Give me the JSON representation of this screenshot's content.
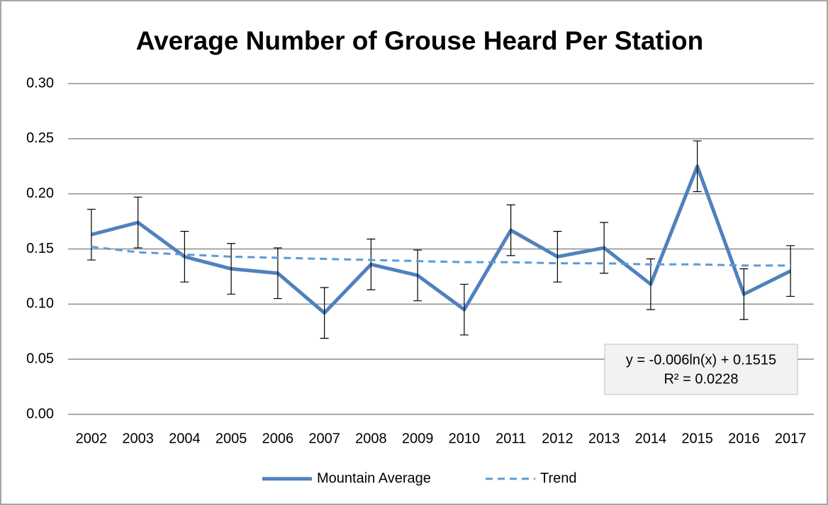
{
  "chart_data": {
    "type": "line",
    "title": "Average Number of Grouse Heard Per Station",
    "categories": [
      "2002",
      "2003",
      "2004",
      "2005",
      "2006",
      "2007",
      "2008",
      "2009",
      "2010",
      "2011",
      "2012",
      "2013",
      "2014",
      "2015",
      "2016",
      "2017"
    ],
    "series": [
      {
        "name": "Mountain Average",
        "color": "#4f81bd",
        "style": "solid",
        "values": [
          0.163,
          0.174,
          0.143,
          0.132,
          0.128,
          0.092,
          0.136,
          0.126,
          0.095,
          0.167,
          0.143,
          0.151,
          0.118,
          0.225,
          0.109,
          0.13
        ],
        "errors": [
          0.023,
          0.023,
          0.023,
          0.023,
          0.023,
          0.023,
          0.023,
          0.023,
          0.023,
          0.023,
          0.023,
          0.023,
          0.023,
          0.023,
          0.023,
          0.023
        ]
      },
      {
        "name": "Trend",
        "color": "#5b9bd5",
        "style": "dashed",
        "values": [
          0.152,
          0.147,
          0.145,
          0.143,
          0.142,
          0.141,
          0.14,
          0.139,
          0.138,
          0.138,
          0.137,
          0.137,
          0.136,
          0.136,
          0.135,
          0.135
        ]
      }
    ],
    "ylim": [
      0,
      0.3
    ],
    "yticks": [
      {
        "value": 0,
        "label": "0.00"
      },
      0.05,
      {
        "value": 0.1,
        "label": "0.10"
      },
      0.15,
      {
        "value": 0.2,
        "label": "0.20"
      },
      0.25,
      {
        "value": 0.3,
        "label": "0.30"
      }
    ],
    "grid": true,
    "legend": "bottom",
    "annotations": [
      "y = -0.006ln(x) + 0.1515",
      "R² = 0.0228"
    ]
  }
}
